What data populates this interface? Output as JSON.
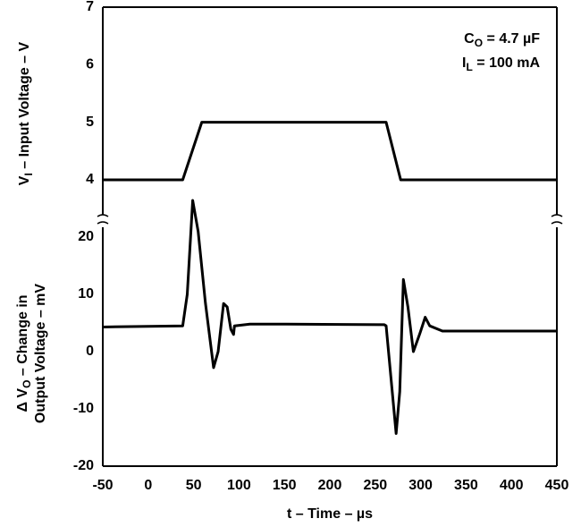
{
  "chart_data": [
    {
      "type": "line",
      "ylabel": {
        "text": "V",
        "sub": "I",
        "rest": " – Input Voltage – V"
      },
      "annotations": [
        {
          "text": "C",
          "sub": "O",
          "rest": " = 4.7 µF"
        },
        {
          "text": "I",
          "sub": "L",
          "rest": " = 100 mA"
        }
      ],
      "x": [
        -50,
        38,
        59,
        262,
        278,
        450
      ],
      "series": [
        {
          "color": "#000000",
          "values": [
            4,
            4,
            5,
            5,
            4,
            4
          ]
        }
      ],
      "ylim": [
        3.3,
        7
      ],
      "yticks": [
        4,
        5,
        6,
        7
      ],
      "grid": true
    },
    {
      "type": "line",
      "ylabel": [
        {
          "text": "Δ V",
          "sub": "O",
          "rest": " – Change in"
        },
        {
          "text": "Output Voltage – mV"
        }
      ],
      "xlabel": "t – Time – µs",
      "x": [
        -50,
        38,
        43,
        49,
        55,
        63,
        72,
        77,
        83,
        87,
        91,
        94,
        95,
        112,
        152,
        260,
        262,
        273,
        277,
        281,
        286,
        292,
        299,
        305,
        310,
        324,
        450
      ],
      "series": [
        {
          "color": "#000000",
          "values": [
            4.3,
            4.5,
            10,
            26.4,
            21,
            8.5,
            -2.8,
            0,
            8.4,
            7.8,
            3.9,
            3,
            4.5,
            4.8,
            4.8,
            4.7,
            4.5,
            -14.3,
            -7,
            12.6,
            7.8,
            0,
            3.1,
            6,
            4.5,
            3.6,
            3.6
          ]
        }
      ],
      "xlim": [
        -50,
        450
      ],
      "xticks": [
        -50,
        0,
        50,
        100,
        150,
        200,
        250,
        300,
        350,
        400,
        450
      ],
      "ylim": [
        -20,
        22.5
      ],
      "yticks": [
        -20,
        -10,
        0,
        10,
        20
      ],
      "grid": true
    }
  ]
}
